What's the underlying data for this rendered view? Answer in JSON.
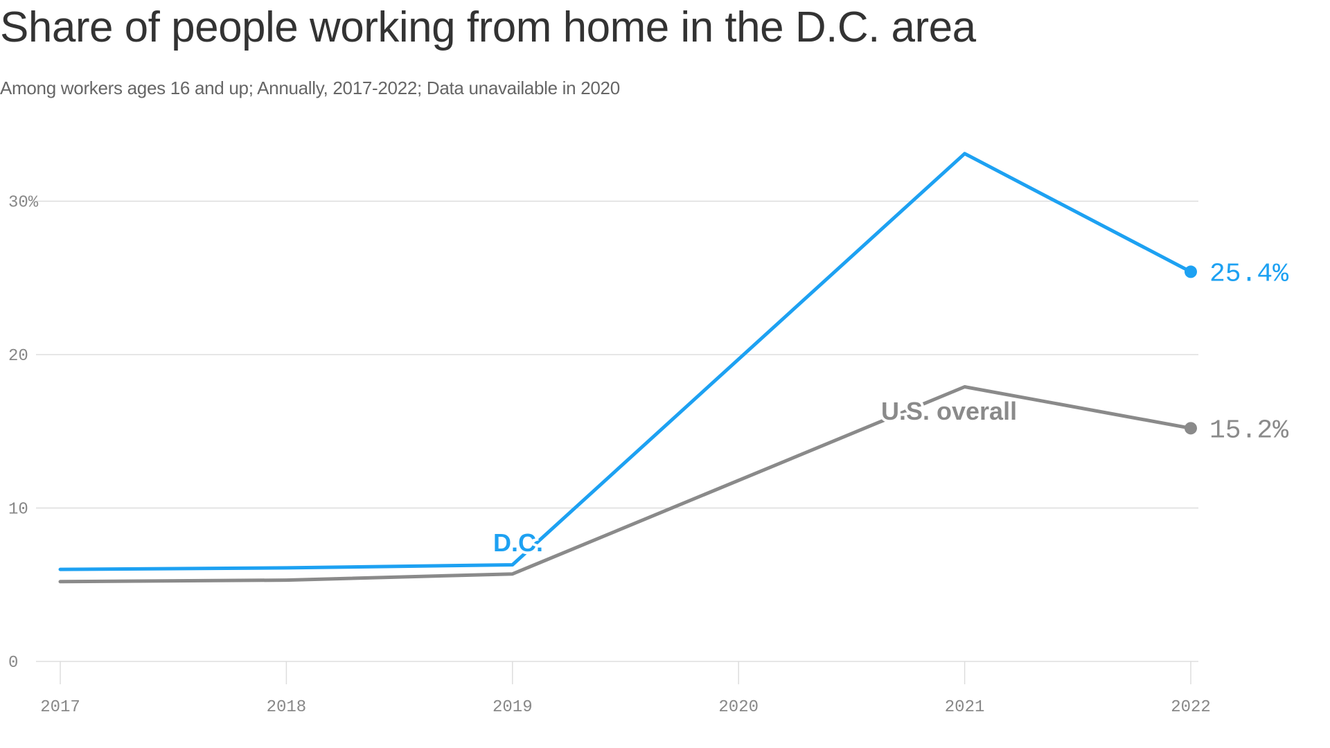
{
  "title": "Share of people working from home in the D.C. area",
  "subtitle": "Among workers ages 16 and up; Annually, 2017-2022; Data unavailable in 2020",
  "colors": {
    "dc": "#1da1f2",
    "us": "#8a8a8a",
    "grid": "#dddddd",
    "tick": "#888888"
  },
  "chart_data": {
    "type": "line",
    "title": "Share of people working from home in the D.C. area",
    "subtitle": "Among workers ages 16 and up; Annually, 2017-2022; Data unavailable in 2020",
    "x": [
      2017,
      2018,
      2019,
      2020,
      2021,
      2022
    ],
    "xlim": [
      2017,
      2022
    ],
    "ylim": [
      0,
      35
    ],
    "y_ticks": [
      0,
      10,
      20,
      30
    ],
    "y_tick_labels": [
      "0",
      "10",
      "20",
      "30%"
    ],
    "x_tick_labels": [
      "2017",
      "2018",
      "2019",
      "2020",
      "2021",
      "2022"
    ],
    "grid": true,
    "legend": "inline labels",
    "series": [
      {
        "name": "D.C.",
        "color": "#1da1f2",
        "x": [
          2017,
          2018,
          2019,
          2021,
          2022
        ],
        "values": [
          6.0,
          6.1,
          6.3,
          33.1,
          25.4
        ],
        "end_label": "25.4%"
      },
      {
        "name": "U.S. overall",
        "color": "#8a8a8a",
        "x": [
          2017,
          2018,
          2019,
          2021,
          2022
        ],
        "values": [
          5.2,
          5.3,
          5.7,
          17.9,
          15.2
        ],
        "end_label": "15.2%"
      }
    ]
  }
}
